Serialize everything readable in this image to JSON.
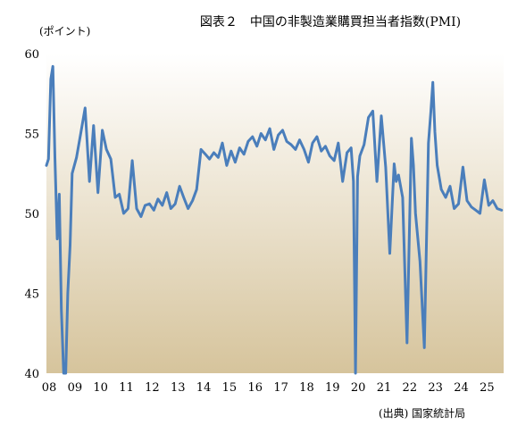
{
  "chart_data": {
    "type": "line",
    "title": "図表２　中国の非製造業購買担当者指数(PMI)",
    "ylabel": "(ポイント)",
    "source": "(出典) 国家統計局",
    "ylim": [
      40,
      60
    ],
    "xlim": [
      2008.0,
      2025.75
    ],
    "y_ticks": [
      40,
      45,
      50,
      55,
      60
    ],
    "x_ticks": [
      {
        "label": "08",
        "value": 2008
      },
      {
        "label": "09",
        "value": 2009
      },
      {
        "label": "10",
        "value": 2010
      },
      {
        "label": "11",
        "value": 2011
      },
      {
        "label": "12",
        "value": 2012
      },
      {
        "label": "13",
        "value": 2013
      },
      {
        "label": "14",
        "value": 2014
      },
      {
        "label": "15",
        "value": 2015
      },
      {
        "label": "16",
        "value": 2016
      },
      {
        "label": "17",
        "value": 2017
      },
      {
        "label": "18",
        "value": 2018
      },
      {
        "label": "19",
        "value": 2019
      },
      {
        "label": "20",
        "value": 2020
      },
      {
        "label": "21",
        "value": 2021
      },
      {
        "label": "22",
        "value": 2022
      },
      {
        "label": "23",
        "value": 2023
      },
      {
        "label": "24",
        "value": 2024
      },
      {
        "label": "25",
        "value": 2025
      }
    ],
    "grid": false,
    "line_color": "#4a7ebb",
    "background_top": "#ffffff",
    "background_bottom": "#d6c49c",
    "series": [
      {
        "x": [
          2008.0,
          2008.08,
          2008.17,
          2008.25,
          2008.33,
          2008.42,
          2008.5,
          2008.58,
          2008.67,
          2008.75,
          2008.83,
          2008.92,
          2009.0,
          2009.17,
          2009.33,
          2009.5,
          2009.67,
          2009.83,
          2010.0,
          2010.17,
          2010.33,
          2010.5,
          2010.67,
          2010.83,
          2011.0,
          2011.17,
          2011.33,
          2011.5,
          2011.67,
          2011.83,
          2012.0,
          2012.17,
          2012.33,
          2012.5,
          2012.67,
          2012.83,
          2013.0,
          2013.17,
          2013.33,
          2013.5,
          2013.67,
          2013.83,
          2014.0,
          2014.17,
          2014.33,
          2014.5,
          2014.67,
          2014.83,
          2015.0,
          2015.17,
          2015.33,
          2015.5,
          2015.67,
          2015.83,
          2016.0,
          2016.17,
          2016.33,
          2016.5,
          2016.67,
          2016.83,
          2017.0,
          2017.17,
          2017.33,
          2017.5,
          2017.67,
          2017.83,
          2018.0,
          2018.17,
          2018.33,
          2018.5,
          2018.67,
          2018.83,
          2019.0,
          2019.17,
          2019.33,
          2019.5,
          2019.67,
          2019.83,
          2019.92,
          2020.0,
          2020.08,
          2020.17,
          2020.33,
          2020.5,
          2020.67,
          2020.83,
          2021.0,
          2021.17,
          2021.33,
          2021.5,
          2021.58,
          2021.67,
          2021.83,
          2022.0,
          2022.17,
          2022.25,
          2022.33,
          2022.5,
          2022.67,
          2022.83,
          2022.92,
          2023.0,
          2023.08,
          2023.17,
          2023.33,
          2023.5,
          2023.67,
          2023.83,
          2024.0,
          2024.17,
          2024.33,
          2024.5,
          2024.67,
          2024.83,
          2025.0,
          2025.17,
          2025.33,
          2025.5,
          2025.67
        ],
        "y": [
          53.0,
          53.4,
          58.4,
          59.2,
          53.5,
          48.4,
          51.2,
          44.0,
          40.0,
          40.0,
          45.0,
          48.0,
          52.5,
          53.5,
          55.0,
          56.6,
          52.0,
          55.5,
          51.3,
          55.2,
          54.0,
          53.4,
          51.0,
          51.2,
          50.0,
          50.3,
          53.3,
          50.3,
          49.8,
          50.5,
          50.6,
          50.2,
          50.9,
          50.5,
          51.3,
          50.3,
          50.6,
          51.7,
          51.0,
          50.3,
          50.8,
          51.5,
          54.0,
          53.7,
          53.4,
          53.8,
          53.5,
          54.4,
          53.0,
          53.9,
          53.2,
          54.1,
          53.7,
          54.5,
          54.8,
          54.2,
          55.0,
          54.6,
          55.3,
          54.0,
          54.9,
          55.2,
          54.5,
          54.3,
          54.0,
          54.6,
          54.0,
          53.2,
          54.4,
          54.8,
          53.9,
          54.2,
          53.6,
          53.3,
          54.4,
          52.0,
          53.8,
          54.1,
          52.0,
          40.0,
          52.3,
          53.6,
          54.3,
          56.0,
          56.4,
          52.0,
          56.1,
          52.9,
          47.5,
          53.1,
          52.0,
          52.4,
          51.0,
          41.9,
          54.7,
          53.0,
          50.0,
          47.0,
          41.6,
          54.4,
          56.3,
          58.2,
          55.1,
          53.0,
          51.5,
          51.0,
          51.7,
          50.3,
          50.6,
          52.9,
          50.8,
          50.4,
          50.2,
          50.0,
          52.1,
          50.5,
          50.8,
          50.3,
          50.2
        ]
      }
    ]
  }
}
